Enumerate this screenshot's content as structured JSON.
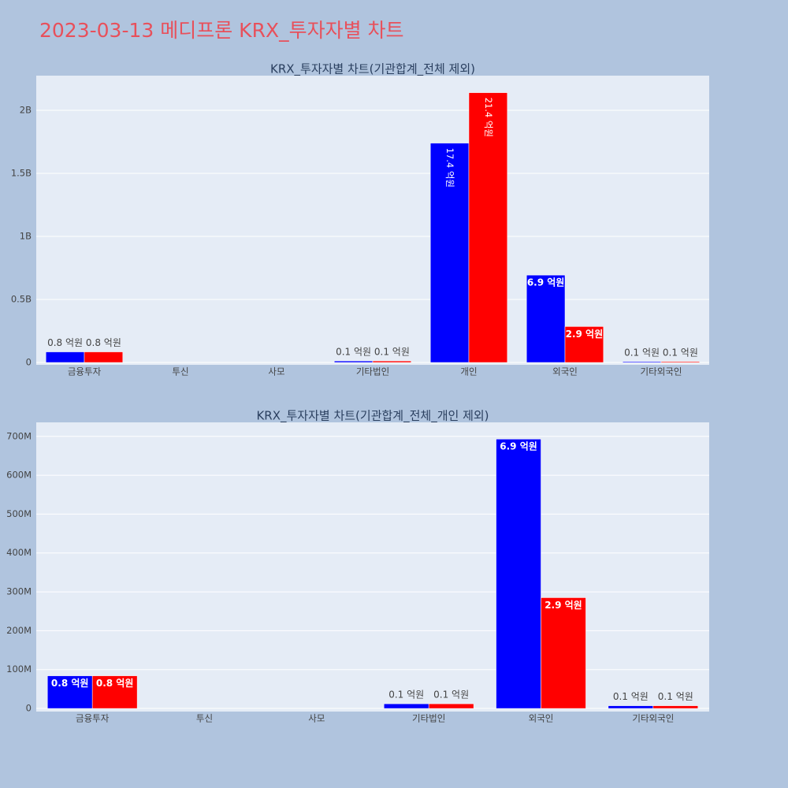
{
  "title": "2023-03-13 메디프론 KRX_투자자별 차트",
  "chart_data": [
    {
      "type": "bar",
      "title": "KRX_투자자별 차트(기관합계_전체 제외)",
      "categories": [
        "금융투자",
        "투신",
        "사모",
        "기타법인",
        "개인",
        "외국인",
        "기타외국인"
      ],
      "series": [
        {
          "color": "#0000ff",
          "values": [
            84000000,
            0,
            0,
            12000000,
            1740000000,
            693000000,
            7000000
          ],
          "value_labels": [
            "0.8 억원",
            null,
            null,
            "0.1 억원",
            "17.4 억원",
            "6.9 억원",
            "0.1 억원"
          ]
        },
        {
          "color": "#ff0000",
          "values": [
            84000000,
            0,
            0,
            12000000,
            2140000000,
            285000000,
            7000000
          ],
          "value_labels": [
            "0.8 억원",
            null,
            null,
            "0.1 억원",
            "21.4 억원",
            "2.9 억원",
            "0.1 억원"
          ]
        }
      ],
      "ylim": [
        -18750000,
        2275000000
      ],
      "yticks": [
        0,
        {
          "value": 500000000,
          "label": "0.5B"
        },
        {
          "value": 1000000000,
          "label": "1B"
        },
        {
          "value": 1500000000,
          "label": "1.5B"
        },
        {
          "value": 2000000000,
          "label": "2B"
        }
      ],
      "grid": true
    },
    {
      "type": "bar",
      "title": "KRX_투자자별 차트(기관합계_전체_개인 제외)",
      "categories": [
        "금융투자",
        "투신",
        "사모",
        "기타법인",
        "외국인",
        "기타외국인"
      ],
      "series": [
        {
          "color": "#0000ff",
          "values": [
            84000000,
            0,
            0,
            12000000,
            693000000,
            7000000
          ],
          "value_labels": [
            "0.8 억원",
            null,
            null,
            "0.1 억원",
            "6.9 억원",
            "0.1 억원"
          ]
        },
        {
          "color": "#ff0000",
          "values": [
            84000000,
            0,
            0,
            12000000,
            285000000,
            7000000
          ],
          "value_labels": [
            "0.8 억원",
            null,
            null,
            "0.1 억원",
            "2.9 억원",
            "0.1 억원"
          ]
        }
      ],
      "ylim": [
        -8000000,
        736000000
      ],
      "yticks": [
        0,
        {
          "value": 100000000,
          "label": "100M"
        },
        {
          "value": 200000000,
          "label": "200M"
        },
        {
          "value": 300000000,
          "label": "300M"
        },
        {
          "value": 400000000,
          "label": "400M"
        },
        {
          "value": 500000000,
          "label": "500M"
        },
        {
          "value": 600000000,
          "label": "600M"
        },
        {
          "value": 700000000,
          "label": "700M"
        }
      ],
      "grid": true
    }
  ]
}
